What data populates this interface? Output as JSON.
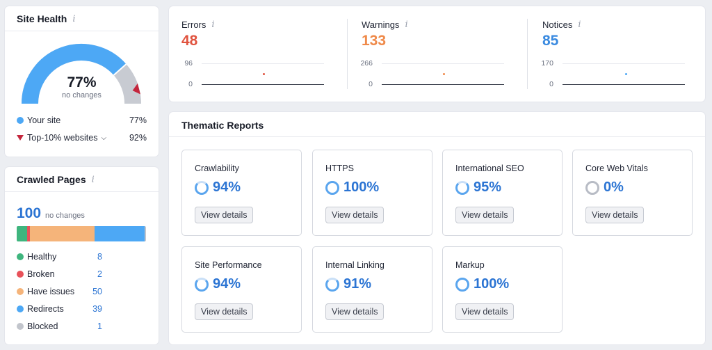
{
  "site_health": {
    "title": "Site Health",
    "info_icon": "i",
    "score": "77%",
    "score_value": 77,
    "score_sub": "no changes",
    "top10_value": 92,
    "legend": [
      {
        "label": "Your site",
        "value": "77%",
        "color": "#4da8f5"
      },
      {
        "label": "Top-10% websites",
        "value": "92%",
        "color": "#c4263d"
      }
    ]
  },
  "crawled_pages": {
    "title": "Crawled Pages",
    "info_icon": "i",
    "total": "100",
    "total_sub": "no changes",
    "rows": [
      {
        "label": "Healthy",
        "value": "8",
        "count": 8,
        "color": "#3fb57e"
      },
      {
        "label": "Broken",
        "value": "2",
        "count": 2,
        "color": "#e8525a"
      },
      {
        "label": "Have issues",
        "value": "50",
        "count": 50,
        "color": "#f5b47a"
      },
      {
        "label": "Redirects",
        "value": "39",
        "count": 39,
        "color": "#4da8f5"
      },
      {
        "label": "Blocked",
        "value": "1",
        "count": 1,
        "color": "#c2c5cc"
      }
    ]
  },
  "issues": [
    {
      "label": "Errors",
      "count": "48",
      "color": "#e0533f",
      "max_tick": "96",
      "min_tick": "0"
    },
    {
      "label": "Warnings",
      "count": "133",
      "color": "#ef8a4a",
      "max_tick": "266",
      "min_tick": "0"
    },
    {
      "label": "Notices",
      "count": "85",
      "color": "#3a8ae0",
      "max_tick": "170",
      "min_tick": "0"
    }
  ],
  "thematic": {
    "title": "Thematic Reports",
    "button_label": "View details",
    "tiles": [
      {
        "name": "Crawlability",
        "score": "94%"
      },
      {
        "name": "HTTPS",
        "score": "100%"
      },
      {
        "name": "International SEO",
        "score": "95%"
      },
      {
        "name": "Core Web Vitals",
        "score": "0%"
      },
      {
        "name": "Site Performance",
        "score": "94%"
      },
      {
        "name": "Internal Linking",
        "score": "91%"
      },
      {
        "name": "Markup",
        "score": "100%"
      }
    ]
  }
}
